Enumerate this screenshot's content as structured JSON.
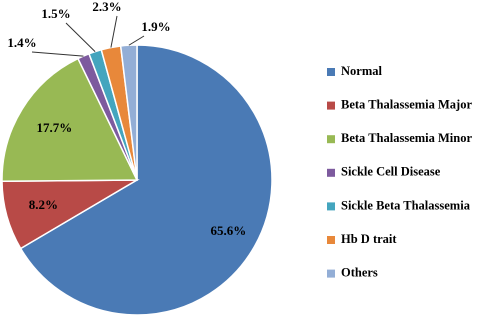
{
  "chart_data": {
    "type": "pie",
    "categories": [
      "Normal",
      "Beta Thalassemia Major",
      "Beta Thalassemia Minor",
      "Sickle Cell Disease",
      "Sickle Beta Thalassemia",
      "Hb D trait",
      "Others"
    ],
    "values": [
      65.6,
      8.2,
      17.7,
      1.4,
      1.5,
      2.3,
      1.9
    ],
    "value_labels": [
      "65.6%",
      "8.2%",
      "17.7%",
      "1.4%",
      "1.5%",
      "2.3%",
      "1.9%"
    ],
    "colors": [
      "#4a7ab5",
      "#b84a47",
      "#98b954",
      "#7d5a9e",
      "#44a5be",
      "#e8883a",
      "#93aed6"
    ],
    "legend": "right"
  }
}
